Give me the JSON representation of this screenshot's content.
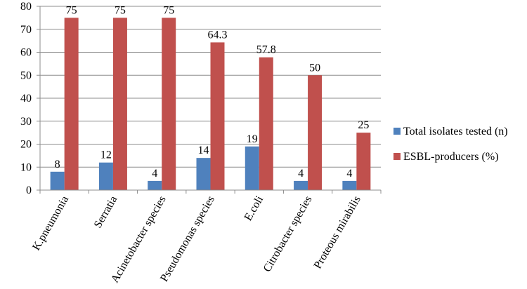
{
  "chart_data": {
    "type": "bar",
    "categories": [
      "K.pneumonia",
      "Serratia",
      "Acinetobacter species",
      "Pseudomonas species",
      "E.coli",
      "Citrobacter species",
      "Proteous mirabilis"
    ],
    "series": [
      {
        "name": "Total isolates tested (n)",
        "values": [
          8,
          12,
          4,
          14,
          19,
          4,
          4
        ],
        "labels": [
          "8",
          "12",
          "4",
          "14",
          "19",
          "4",
          "4"
        ],
        "color": "#4F81BD"
      },
      {
        "name": "ESBL-producers (%)",
        "values": [
          75,
          75,
          75,
          64.3,
          57.8,
          50,
          25
        ],
        "labels": [
          "75",
          "75",
          "75",
          "64.3",
          "57.8",
          "50",
          "25"
        ],
        "color": "#C0504D"
      }
    ],
    "y_ticks": [
      "0",
      "10",
      "20",
      "30",
      "40",
      "50",
      "60",
      "70",
      "80"
    ],
    "ylim": [
      0,
      80
    ],
    "grid": true,
    "legend_position": "right",
    "title": "",
    "xlabel": "",
    "ylabel": ""
  }
}
